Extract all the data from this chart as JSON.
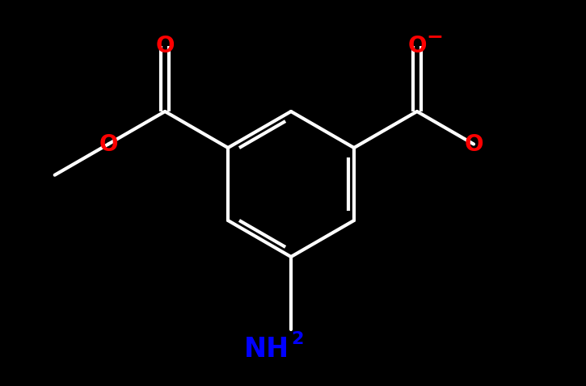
{
  "background_color": "#000000",
  "bond_color": "#ffffff",
  "bond_width": 3.0,
  "atom_colors": {
    "O": "#ff0000",
    "N": "#0000ff",
    "C": "#ffffff"
  },
  "font_size_O": 20,
  "font_size_NH2": 24,
  "font_size_sub": 16,
  "font_size_charge": 18
}
